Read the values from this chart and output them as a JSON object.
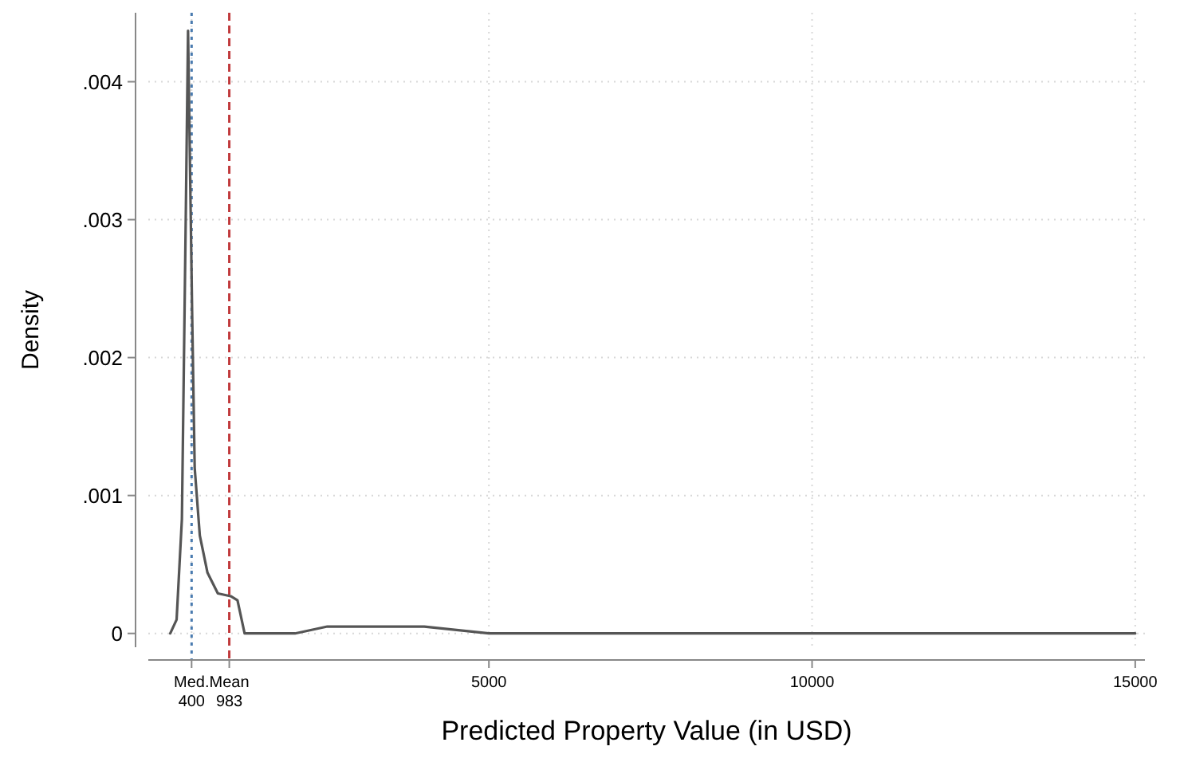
{
  "chart_data": {
    "type": "line",
    "xlabel": "Predicted Property Value (in USD)",
    "ylabel": "Density",
    "x": [
      70,
      168,
      250,
      312,
      345,
      408,
      448,
      527,
      646,
      806,
      1005,
      1110,
      1220,
      1500,
      2000,
      2500,
      3000,
      3300,
      3600,
      4000,
      5000,
      6000,
      7000,
      8000,
      9000,
      10000,
      12000,
      15000
    ],
    "series": [
      {
        "color": "#555555",
        "values": [
          0,
          0.0001,
          0.00083,
          0.0031,
          0.00437,
          0.00233,
          0.0012,
          0.00071,
          0.00044,
          0.00029,
          0.00027,
          0.00024,
          0,
          0,
          0,
          5e-05,
          5e-05,
          5e-05,
          5e-05,
          5e-05,
          0,
          0,
          0,
          0,
          0,
          0,
          0,
          0
        ]
      }
    ],
    "xlim": [
      -270,
      15150
    ],
    "xticks": [
      {
        "value": 400,
        "label": "Med.\n400"
      },
      {
        "value": 983,
        "label": "Mean\n983"
      },
      5000,
      10000,
      15000
    ],
    "ylim": [
      -0.0001,
      0.0045
    ],
    "yticks": [
      0,
      {
        "value": 0.001,
        "label": ".001"
      },
      {
        "value": 0.002,
        "label": ".002"
      },
      {
        "value": 0.003,
        "label": ".003"
      },
      {
        "value": 0.004,
        "label": ".004"
      }
    ],
    "grid": true,
    "line_style": "solid",
    "ref_lines": [
      {
        "axis": "x",
        "value": 400,
        "color": "#4a7bb0",
        "line_style": "dotted"
      },
      {
        "axis": "x",
        "value": 983,
        "color": "#c0393b",
        "line_style": "dashed"
      }
    ]
  }
}
